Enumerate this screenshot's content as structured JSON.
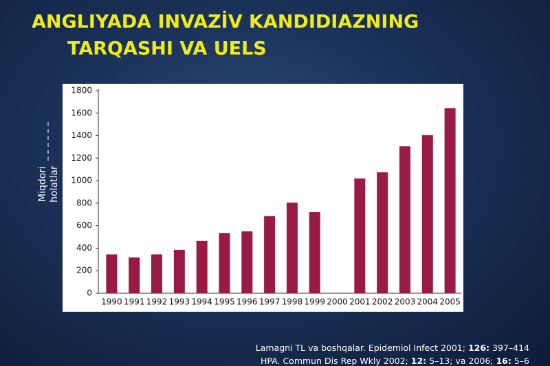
{
  "chart_data": {
    "type": "bar",
    "title": [
      "ANGLIYADA INVAZİV KANDIDIAZNING",
      "TARQASHI VA UELS"
    ],
    "y_label": [
      "Miqdori",
      "holatlar"
    ],
    "categories": [
      "1990",
      "1991",
      "1992",
      "1993",
      "1994",
      "1995",
      "1996",
      "1997",
      "1998",
      "1999",
      "2000",
      "2001",
      "2002",
      "2003",
      "2004",
      "2005"
    ],
    "values": [
      345,
      318,
      345,
      385,
      465,
      535,
      550,
      685,
      805,
      720,
      null,
      1020,
      1075,
      1305,
      1405,
      1645
    ],
    "color": "#9a1a46",
    "ylim": [
      0,
      1800
    ],
    "yticks": [
      0,
      200,
      400,
      600,
      800,
      1000,
      1200,
      1400,
      1600,
      1800
    ],
    "grid": false,
    "source": [
      {
        "text": "Lamagni TL va boshqalar. Epidemiol Infect 2001; "
      },
      {
        "text": "126:",
        "bold": true
      },
      {
        "text": " 397–414 HPA. Commun Dis Rep Wkly 2002; "
      },
      {
        "text": "12:",
        "bold": true
      },
      {
        "text": " 5–13; va 2006; "
      },
      {
        "text": "16:",
        "bold": true
      },
      {
        "text": " 5–6"
      }
    ]
  }
}
